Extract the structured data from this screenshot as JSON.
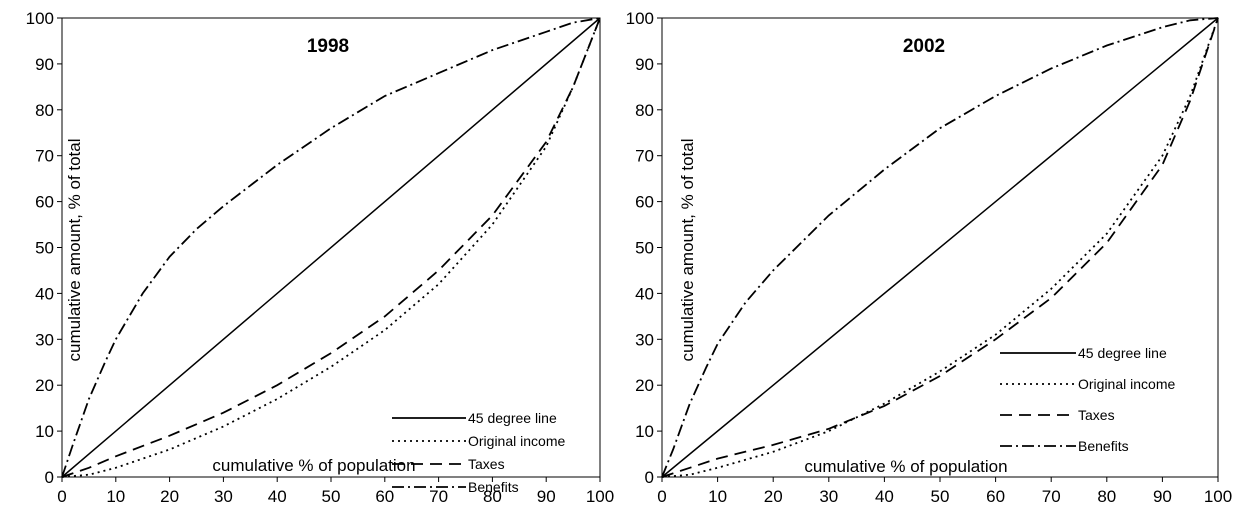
{
  "chart_data": [
    {
      "type": "line",
      "title": "1998",
      "xlabel": "cumulative % of population",
      "ylabel": "cumulative amount, % of total",
      "xlim": [
        0,
        100
      ],
      "ylim": [
        0,
        100
      ],
      "xticks": [
        "0",
        "10",
        "20",
        "30",
        "40",
        "50",
        "60",
        "70",
        "80",
        "90",
        "100"
      ],
      "yticks": [
        "0",
        "10",
        "20",
        "30",
        "40",
        "50",
        "60",
        "70",
        "80",
        "90",
        "100"
      ],
      "legend_position": "bottom-right",
      "series": [
        {
          "name": "45 degree line",
          "style": "solid",
          "x": [
            0,
            100
          ],
          "y": [
            0,
            100
          ]
        },
        {
          "name": "Original income",
          "style": "dotted",
          "x": [
            0,
            5,
            10,
            20,
            30,
            40,
            50,
            60,
            70,
            80,
            90,
            95,
            100
          ],
          "y": [
            0,
            0.5,
            2,
            6,
            11,
            17,
            24,
            32,
            42,
            55,
            72,
            85,
            100
          ]
        },
        {
          "name": "Taxes",
          "style": "dashed",
          "x": [
            0,
            5,
            10,
            20,
            30,
            40,
            50,
            60,
            70,
            80,
            90,
            95,
            100
          ],
          "y": [
            0,
            2,
            4.5,
            9,
            14,
            20,
            27,
            35,
            45,
            57,
            73,
            85,
            100
          ]
        },
        {
          "name": "Benefits",
          "style": "dashdot",
          "x": [
            0,
            2,
            5,
            8,
            10,
            15,
            20,
            25,
            30,
            40,
            50,
            60,
            70,
            80,
            90,
            95,
            100
          ],
          "y": [
            0,
            7,
            17,
            25,
            30,
            40,
            48,
            54,
            59,
            68,
            76,
            83,
            88,
            93,
            97,
            99,
            100
          ]
        }
      ]
    },
    {
      "type": "line",
      "title": "2002",
      "xlabel": "cumulative % of population",
      "ylabel": "cumulative amount, % of total",
      "xlim": [
        0,
        100
      ],
      "ylim": [
        0,
        100
      ],
      "xticks": [
        "0",
        "10",
        "20",
        "30",
        "40",
        "50",
        "60",
        "70",
        "80",
        "90",
        "100"
      ],
      "yticks": [
        "0",
        "10",
        "20",
        "30",
        "40",
        "50",
        "60",
        "70",
        "80",
        "90",
        "100"
      ],
      "legend_position": "bottom-right",
      "series": [
        {
          "name": "45 degree line",
          "style": "solid",
          "x": [
            0,
            100
          ],
          "y": [
            0,
            100
          ]
        },
        {
          "name": "Original income",
          "style": "dotted",
          "x": [
            0,
            5,
            10,
            20,
            30,
            40,
            50,
            60,
            70,
            80,
            90,
            95,
            100
          ],
          "y": [
            0,
            0.5,
            2,
            5.5,
            10,
            16,
            23,
            31,
            41,
            53,
            70,
            83,
            100
          ]
        },
        {
          "name": "Taxes",
          "style": "dashed",
          "x": [
            0,
            5,
            10,
            20,
            30,
            40,
            50,
            60,
            70,
            80,
            90,
            95,
            100
          ],
          "y": [
            0,
            2,
            4,
            7,
            10.5,
            15.5,
            22,
            30,
            39,
            51,
            68,
            82,
            100
          ]
        },
        {
          "name": "Benefits",
          "style": "dashdot",
          "x": [
            0,
            2,
            5,
            8,
            10,
            15,
            20,
            25,
            30,
            40,
            50,
            60,
            70,
            80,
            90,
            95,
            100
          ],
          "y": [
            0,
            6,
            16,
            24,
            29,
            38,
            45,
            51,
            57,
            67,
            76,
            83,
            89,
            94,
            98,
            99.5,
            100
          ]
        }
      ]
    }
  ]
}
